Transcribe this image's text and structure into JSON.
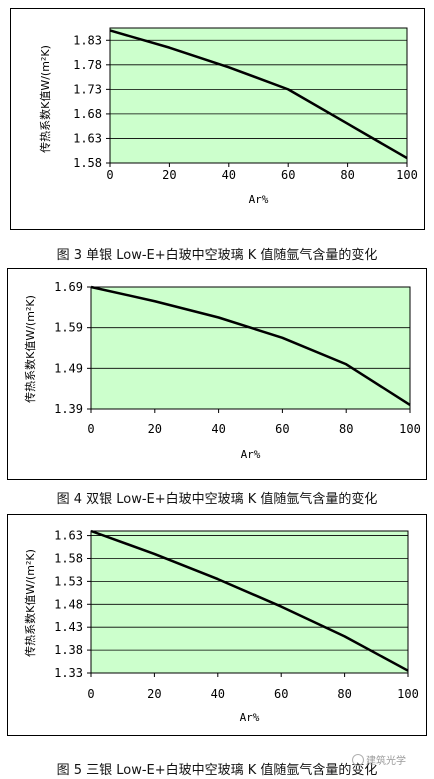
{
  "chart_data": [
    {
      "type": "line",
      "title": "图 3 单银 Low-E+白玻中空玻璃 K 值随氩气含量的变化",
      "xlabel": "Ar%",
      "ylabel": "传热系数K值W/(m²K)",
      "x": [
        0,
        20,
        40,
        60,
        80,
        100
      ],
      "series": [
        {
          "values": [
            1.85,
            1.815,
            1.775,
            1.73,
            1.66,
            1.59
          ]
        }
      ],
      "xticks": [
        "0",
        "20",
        "40",
        "60",
        "80",
        "100"
      ],
      "yticks": [
        "1.58",
        "1.63",
        "1.68",
        "1.73",
        "1.78",
        "1.83"
      ],
      "xlim": [
        0,
        100
      ],
      "ylim": [
        1.58,
        1.855
      ],
      "plot_bg": "#ccffcc",
      "line_color": "#000000",
      "grid": "horizontal"
    },
    {
      "type": "line",
      "title": "图 4 双银 Low-E+白玻中空玻璃 K 值随氩气含量的变化",
      "xlabel": "Ar%",
      "ylabel": "传热系数K值W/(m²K)",
      "x": [
        0,
        20,
        40,
        60,
        80,
        100
      ],
      "series": [
        {
          "values": [
            1.69,
            1.655,
            1.615,
            1.565,
            1.5,
            1.4
          ]
        }
      ],
      "xticks": [
        "0",
        "20",
        "40",
        "60",
        "80",
        "100"
      ],
      "yticks": [
        "1.39",
        "1.49",
        "1.59",
        "1.69"
      ],
      "xlim": [
        0,
        100
      ],
      "ylim": [
        1.39,
        1.69
      ],
      "plot_bg": "#ccffcc",
      "line_color": "#000000",
      "grid": "horizontal"
    },
    {
      "type": "line",
      "title": "图 5 三银 Low-E+白玻中空玻璃 K 值随氩气含量的变化",
      "xlabel": "Ar%",
      "ylabel": "传热系数K值W/(m²K)",
      "x": [
        0,
        20,
        40,
        60,
        80,
        100
      ],
      "series": [
        {
          "values": [
            1.64,
            1.59,
            1.535,
            1.475,
            1.41,
            1.335
          ]
        }
      ],
      "xticks": [
        "0",
        "20",
        "40",
        "60",
        "80",
        "100"
      ],
      "yticks": [
        "1.33",
        "1.38",
        "1.43",
        "1.48",
        "1.53",
        "1.58",
        "1.63"
      ],
      "xlim": [
        0,
        100
      ],
      "ylim": [
        1.33,
        1.64
      ],
      "plot_bg": "#ccffcc",
      "line_color": "#000000",
      "grid": "horizontal"
    }
  ],
  "captions": [
    "图 3 单银 Low-E+白玻中空玻璃 K 值随氩气含量的变化",
    "图 4 双银 Low-E+白玻中空玻璃 K 值随氩气含量的变化",
    "图 5 三银 Low-E+白玻中空玻璃 K 值随氩气含量的变化"
  ],
  "watermark": "建筑光学"
}
